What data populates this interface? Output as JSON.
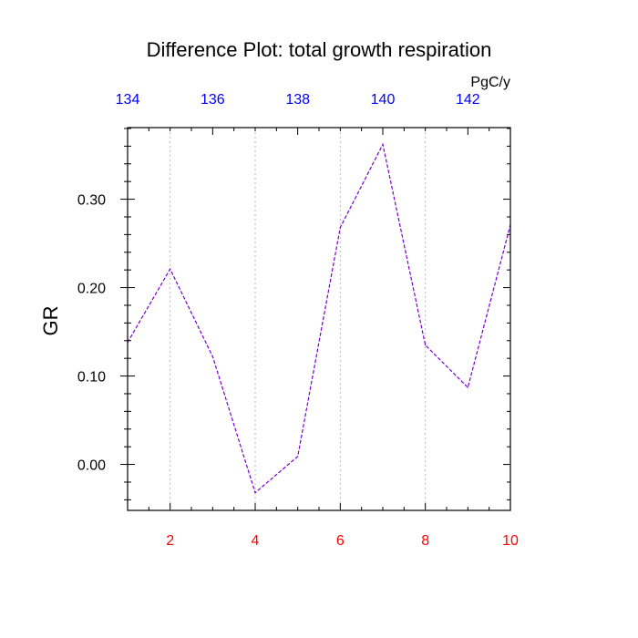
{
  "chart_data": {
    "type": "line",
    "title": "Difference Plot: total growth respiration",
    "ylabel": "GR",
    "top_axis_units": "PgC/y",
    "x": [
      1,
      2,
      3,
      4,
      5,
      6,
      7,
      8,
      9,
      10
    ],
    "series": [
      {
        "values": [
          0.138,
          0.221,
          0.122,
          -0.032,
          0.009,
          0.268,
          0.362,
          0.135,
          0.087,
          0.271
        ]
      }
    ],
    "xlim": [
      1,
      10
    ],
    "ylim": [
      -0.052,
      0.381
    ],
    "bottom_ticks": [
      "2",
      "4",
      "6",
      "8",
      "10"
    ],
    "bottom_tick_values": [
      2,
      4,
      6,
      8,
      10
    ],
    "top_ticks": [
      "134",
      "136",
      "138",
      "140",
      "142"
    ],
    "top_tick_values": [
      134,
      136,
      138,
      140,
      142
    ],
    "top_xlim": [
      134,
      143
    ],
    "y_ticks": [
      "0.00",
      "0.10",
      "0.20",
      "0.30"
    ],
    "y_tick_values": [
      0.0,
      0.1,
      0.2,
      0.3
    ],
    "vertical_grid": "dotted, at bottom ticks",
    "colors": {
      "line": "#7a00cc",
      "bottom_ticks": "#ff0000",
      "top_ticks": "#0000ff",
      "grid": "#bbbbbb"
    }
  }
}
